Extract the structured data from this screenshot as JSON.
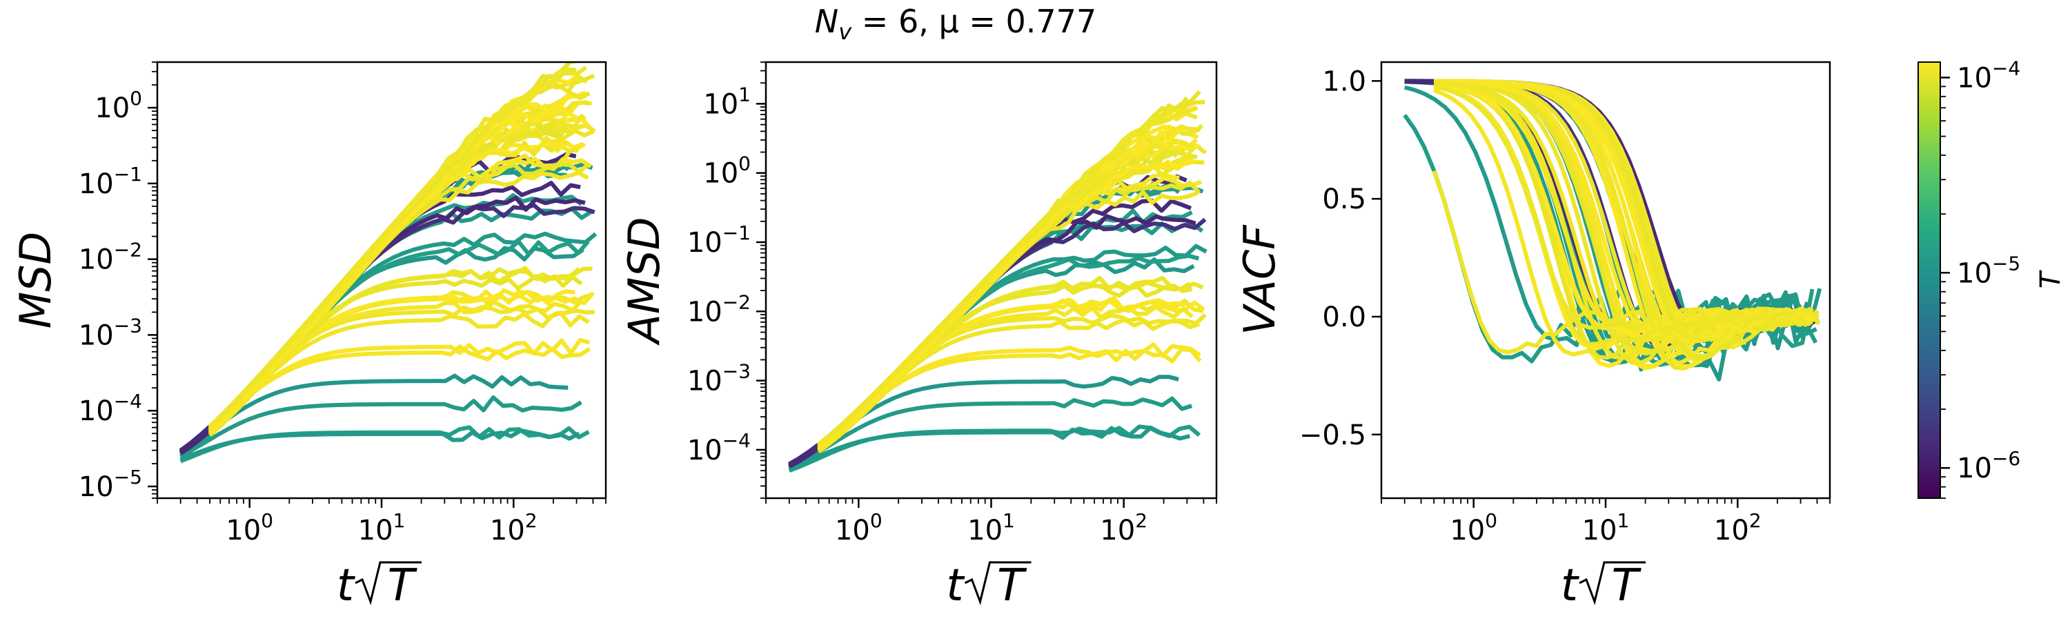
{
  "figure": {
    "title_main": "N",
    "title_sub": "v",
    "title_rest": " = 6, μ = 0.777"
  },
  "chart_data": [
    {
      "type": "line",
      "id": "msd",
      "ylabel": "MSD",
      "xlabel_prefix": "t",
      "xlabel_radicand": "T",
      "xscale": "log",
      "yscale": "log",
      "xlim": [
        0.2,
        500
      ],
      "ylim": [
        7e-06,
        4
      ],
      "xticks": [
        {
          "v": 1,
          "m": "10",
          "e": "0"
        },
        {
          "v": 10,
          "m": "10",
          "e": "1"
        },
        {
          "v": 100,
          "m": "10",
          "e": "2"
        }
      ],
      "yticks": [
        {
          "v": 1e-05,
          "m": "10",
          "e": "−5"
        },
        {
          "v": 0.0001,
          "m": "10",
          "e": "−4"
        },
        {
          "v": 0.001,
          "m": "10",
          "e": "−3"
        },
        {
          "v": 0.01,
          "m": "10",
          "e": "−2"
        },
        {
          "v": 0.1,
          "m": "10",
          "e": "−1"
        },
        {
          "v": 1,
          "m": "10",
          "e": "0"
        }
      ],
      "grid": false,
      "series_count": 56
    },
    {
      "type": "line",
      "id": "amsd",
      "ylabel": "AMSD",
      "xlabel_prefix": "t",
      "xlabel_radicand": "T",
      "xscale": "log",
      "yscale": "log",
      "xlim": [
        0.2,
        500
      ],
      "ylim": [
        2e-05,
        40
      ],
      "xticks": [
        {
          "v": 1,
          "m": "10",
          "e": "0"
        },
        {
          "v": 10,
          "m": "10",
          "e": "1"
        },
        {
          "v": 100,
          "m": "10",
          "e": "2"
        }
      ],
      "yticks": [
        {
          "v": 0.0001,
          "m": "10",
          "e": "−4"
        },
        {
          "v": 0.001,
          "m": "10",
          "e": "−3"
        },
        {
          "v": 0.01,
          "m": "10",
          "e": "−2"
        },
        {
          "v": 0.1,
          "m": "10",
          "e": "−1"
        },
        {
          "v": 1,
          "m": "10",
          "e": "0"
        },
        {
          "v": 10,
          "m": "10",
          "e": "1"
        }
      ],
      "grid": false,
      "series_count": 56
    },
    {
      "type": "line",
      "id": "vacf",
      "ylabel": "VACF",
      "xlabel_prefix": "t",
      "xlabel_radicand": "T",
      "xscale": "log",
      "yscale": "linear",
      "xlim": [
        0.2,
        500
      ],
      "ylim": [
        -0.77,
        1.08
      ],
      "xticks": [
        {
          "v": 1,
          "m": "10",
          "e": "0"
        },
        {
          "v": 10,
          "m": "10",
          "e": "1"
        },
        {
          "v": 100,
          "m": "10",
          "e": "2"
        }
      ],
      "yticks": [
        {
          "v": 1.0,
          "t": "1.0"
        },
        {
          "v": 0.5,
          "t": "0.5"
        },
        {
          "v": 0.0,
          "t": "0.0"
        },
        {
          "v": -0.5,
          "t": "−0.5"
        }
      ],
      "grid": false,
      "series_count": 56
    }
  ],
  "colorbar": {
    "label": "T",
    "scale": "log",
    "range": [
      7e-07,
      0.00012
    ],
    "ticks": [
      {
        "v": 0.0001,
        "m": "10",
        "e": "−4"
      },
      {
        "v": 1e-05,
        "m": "10",
        "e": "−5"
      },
      {
        "v": 1e-06,
        "m": "10",
        "e": "−6"
      }
    ],
    "colors": [
      "#440154",
      "#472c7a",
      "#3b518b",
      "#2c718e",
      "#21908d",
      "#27ad81",
      "#5cc863",
      "#aadc32",
      "#fde725"
    ]
  }
}
